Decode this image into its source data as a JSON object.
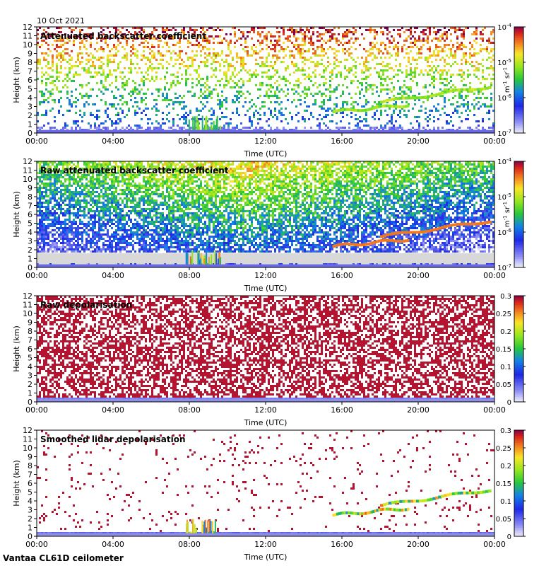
{
  "date_label": "10 Oct 2021",
  "footer_site": "Vantaa CL61D ceilometer",
  "chart_data": [
    {
      "type": "heatmap",
      "title": "Attenuated backscatter coefficient",
      "xlabel": "Time (UTC)",
      "ylabel": "Height (km)",
      "xticks": [
        "00:00",
        "04:00",
        "08:00",
        "12:00",
        "16:00",
        "20:00",
        "00:00"
      ],
      "yticks": [
        "0",
        "1",
        "2",
        "3",
        "4",
        "5",
        "6",
        "7",
        "8",
        "9",
        "10",
        "11",
        "12"
      ],
      "ylim": [
        0,
        12
      ],
      "colorbar": {
        "scale": "log",
        "range": [
          1e-07,
          0.0001
        ],
        "ticks": [
          "10-7",
          "10-6",
          "10-5",
          "10-4"
        ],
        "ticks_base": "10",
        "ticks_exp": [
          "-7",
          "-6",
          "-5",
          "-4"
        ],
        "units": "m-1 sr-1",
        "units_base1": "m",
        "units_exp1": "-1",
        "units_base2": "sr",
        "units_exp2": "-1"
      },
      "features": {
        "cloud_layers": [
          {
            "t_start": 15.5,
            "t_end": 19.5,
            "h_start": 2.4,
            "h_end": 3.2
          },
          {
            "t_start": 18.0,
            "t_end": 23.8,
            "h_start": 3.5,
            "h_end": 5.3
          }
        ],
        "boundary_layer_top_km": 0.6,
        "morning_event": {
          "t_start": 7.8,
          "t_end": 9.6,
          "h_top": 2.0
        }
      }
    },
    {
      "type": "heatmap",
      "title": "Raw attenuated backscatter coefficient",
      "xlabel": "Time (UTC)",
      "ylabel": "Height (km)",
      "xticks": [
        "00:00",
        "04:00",
        "08:00",
        "12:00",
        "16:00",
        "20:00",
        "00:00"
      ],
      "yticks": [
        "0",
        "1",
        "2",
        "3",
        "4",
        "5",
        "6",
        "7",
        "8",
        "9",
        "10",
        "11",
        "12"
      ],
      "ylim": [
        0,
        12
      ],
      "colorbar": {
        "scale": "log",
        "range": [
          1e-07,
          0.0001
        ],
        "ticks": [
          "10-7",
          "10-6",
          "10-5",
          "10-4"
        ],
        "ticks_base": "10",
        "ticks_exp": [
          "-7",
          "-6",
          "-5",
          "-4"
        ],
        "units": "m-1 sr-1",
        "units_base1": "m",
        "units_exp1": "-1",
        "units_base2": "sr",
        "units_exp2": "-1"
      }
    },
    {
      "type": "heatmap",
      "title": "Raw depolarisation",
      "xlabel": "Time (UTC)",
      "ylabel": "Height (km)",
      "xticks": [
        "00:00",
        "04:00",
        "08:00",
        "12:00",
        "16:00",
        "20:00",
        "00:00"
      ],
      "yticks": [
        "0",
        "1",
        "2",
        "3",
        "4",
        "5",
        "6",
        "7",
        "8",
        "9",
        "10",
        "11",
        "12"
      ],
      "ylim": [
        0,
        12
      ],
      "colorbar": {
        "scale": "linear",
        "range": [
          0,
          0.3
        ],
        "ticks": [
          "0",
          "0.05",
          "0.1",
          "0.15",
          "0.2",
          "0.25",
          "0.3"
        ]
      }
    },
    {
      "type": "heatmap",
      "title": "Smoothed lidar depolarisation",
      "xlabel": "Time (UTC)",
      "ylabel": "Height (km)",
      "xticks": [
        "00:00",
        "04:00",
        "08:00",
        "12:00",
        "16:00",
        "20:00",
        "00:00"
      ],
      "yticks": [
        "0",
        "1",
        "2",
        "3",
        "4",
        "5",
        "6",
        "7",
        "8",
        "9",
        "10",
        "11",
        "12"
      ],
      "ylim": [
        0,
        12
      ],
      "colorbar": {
        "scale": "linear",
        "range": [
          0,
          0.3
        ],
        "ticks": [
          "0",
          "0.05",
          "0.1",
          "0.15",
          "0.2",
          "0.25",
          "0.3"
        ]
      }
    }
  ]
}
